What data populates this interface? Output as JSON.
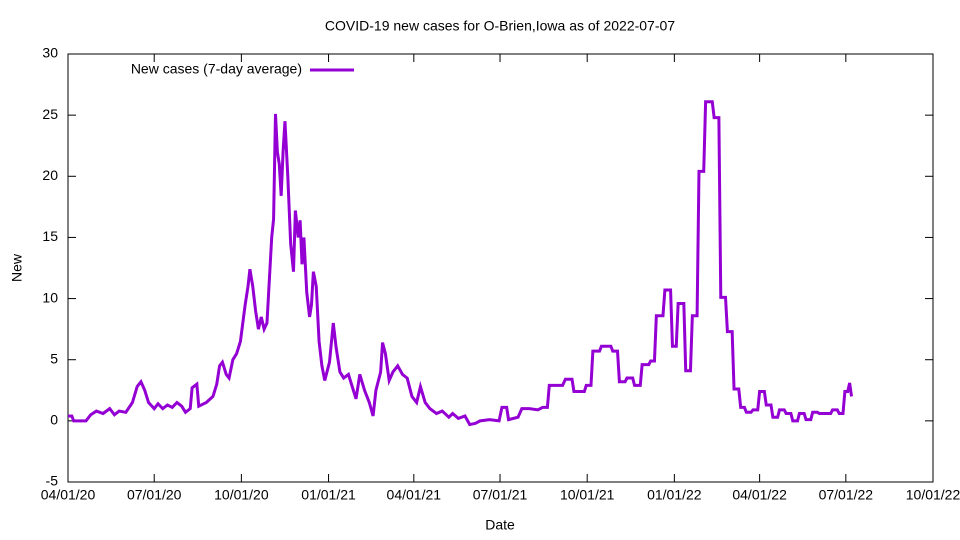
{
  "chart_data": {
    "type": "line",
    "title": "COVID-19 new cases for O-Brien,Iowa as of 2022-07-07",
    "xlabel": "Date",
    "ylabel": "New",
    "legend": "top-left",
    "xlim": [
      "2020-04-01",
      "2022-10-01"
    ],
    "xticks": [
      {
        "value": "2020-04-01",
        "label": "04/01/20"
      },
      {
        "value": "2020-07-01",
        "label": "07/01/20"
      },
      {
        "value": "2020-10-01",
        "label": "10/01/20"
      },
      {
        "value": "2021-01-01",
        "label": "01/01/21"
      },
      {
        "value": "2021-04-01",
        "label": "04/01/21"
      },
      {
        "value": "2021-07-01",
        "label": "07/01/21"
      },
      {
        "value": "2021-10-01",
        "label": "10/01/21"
      },
      {
        "value": "2022-01-01",
        "label": "01/01/22"
      },
      {
        "value": "2022-04-01",
        "label": "04/01/22"
      },
      {
        "value": "2022-07-01",
        "label": "07/01/22"
      },
      {
        "value": "2022-10-01",
        "label": "10/01/22"
      }
    ],
    "ylim": [
      -5,
      30
    ],
    "yticks": [
      -5,
      0,
      5,
      10,
      15,
      20,
      25,
      30
    ],
    "x": [
      "2020-04-01",
      "2020-04-05",
      "2020-04-07",
      "2020-04-20",
      "2020-04-25",
      "2020-05-01",
      "2020-05-08",
      "2020-05-15",
      "2020-05-20",
      "2020-05-25",
      "2020-06-01",
      "2020-06-08",
      "2020-06-13",
      "2020-06-17",
      "2020-06-21",
      "2020-06-25",
      "2020-07-01",
      "2020-07-05",
      "2020-07-10",
      "2020-07-15",
      "2020-07-20",
      "2020-07-25",
      "2020-07-30",
      "2020-08-03",
      "2020-08-08",
      "2020-08-10",
      "2020-08-15",
      "2020-08-17",
      "2020-08-25",
      "2020-09-01",
      "2020-09-05",
      "2020-09-08",
      "2020-09-11",
      "2020-09-15",
      "2020-09-18",
      "2020-09-22",
      "2020-09-26",
      "2020-09-30",
      "2020-10-05",
      "2020-10-08",
      "2020-10-10",
      "2020-10-13",
      "2020-10-16",
      "2020-10-19",
      "2020-10-22",
      "2020-10-25",
      "2020-10-28",
      "2020-10-30",
      "2020-11-02",
      "2020-11-04",
      "2020-11-06",
      "2020-11-08",
      "2020-11-10",
      "2020-11-12",
      "2020-11-14",
      "2020-11-16",
      "2020-11-19",
      "2020-11-22",
      "2020-11-25",
      "2020-11-27",
      "2020-11-30",
      "2020-12-02",
      "2020-12-04",
      "2020-12-06",
      "2020-12-09",
      "2020-12-12",
      "2020-12-14",
      "2020-12-16",
      "2020-12-19",
      "2020-12-22",
      "2020-12-25",
      "2020-12-28",
      "2021-01-02",
      "2021-01-06",
      "2021-01-09",
      "2021-01-13",
      "2021-01-17",
      "2021-01-22",
      "2021-01-26",
      "2021-01-30",
      "2021-02-03",
      "2021-02-08",
      "2021-02-13",
      "2021-02-17",
      "2021-02-20",
      "2021-02-25",
      "2021-02-27",
      "2021-03-02",
      "2021-03-06",
      "2021-03-10",
      "2021-03-15",
      "2021-03-20",
      "2021-03-25",
      "2021-03-30",
      "2021-04-04",
      "2021-04-08",
      "2021-04-13",
      "2021-04-18",
      "2021-04-25",
      "2021-05-01",
      "2021-05-08",
      "2021-05-12",
      "2021-05-18",
      "2021-05-25",
      "2021-05-30",
      "2021-06-05",
      "2021-06-10",
      "2021-06-20",
      "2021-06-30",
      "2021-07-03",
      "2021-07-08",
      "2021-07-10",
      "2021-07-20",
      "2021-07-24",
      "2021-08-01",
      "2021-08-10",
      "2021-08-15",
      "2021-08-20",
      "2021-08-22",
      "2021-09-05",
      "2021-09-08",
      "2021-09-15",
      "2021-09-17",
      "2021-09-28",
      "2021-09-30",
      "2021-10-05",
      "2021-10-07",
      "2021-10-14",
      "2021-10-16",
      "2021-10-26",
      "2021-10-28",
      "2021-11-02",
      "2021-11-04",
      "2021-11-10",
      "2021-11-12",
      "2021-11-18",
      "2021-11-20",
      "2021-11-26",
      "2021-11-28",
      "2021-12-05",
      "2021-12-07",
      "2021-12-11",
      "2021-12-13",
      "2021-12-20",
      "2021-12-22",
      "2021-12-28",
      "2021-12-30",
      "2022-01-03",
      "2022-01-05",
      "2022-01-11",
      "2022-01-13",
      "2022-01-18",
      "2022-01-20",
      "2022-01-25",
      "2022-01-27",
      "2022-02-01",
      "2022-02-03",
      "2022-02-10",
      "2022-02-12",
      "2022-02-17",
      "2022-02-19",
      "2022-02-24",
      "2022-02-26",
      "2022-03-03",
      "2022-03-05",
      "2022-03-10",
      "2022-03-12",
      "2022-03-16",
      "2022-03-18",
      "2022-03-23",
      "2022-03-25",
      "2022-03-30",
      "2022-04-01",
      "2022-04-06",
      "2022-04-08",
      "2022-04-13",
      "2022-04-15",
      "2022-04-20",
      "2022-04-22",
      "2022-04-27",
      "2022-04-29",
      "2022-05-04",
      "2022-05-06",
      "2022-05-11",
      "2022-05-13",
      "2022-05-18",
      "2022-05-20",
      "2022-05-25",
      "2022-05-27",
      "2022-06-01",
      "2022-06-03",
      "2022-06-15",
      "2022-06-17",
      "2022-06-22",
      "2022-06-24",
      "2022-06-28",
      "2022-06-30",
      "2022-07-03",
      "2022-07-05",
      "2022-07-07"
    ],
    "series": [
      {
        "name": "New cases (7-day average)",
        "color": "#9400d3",
        "values": [
          0.4,
          0.4,
          0,
          0,
          0.5,
          0.8,
          0.6,
          1.0,
          0.5,
          0.8,
          0.7,
          1.5,
          2.8,
          3.2,
          2.5,
          1.5,
          1.0,
          1.4,
          1.0,
          1.3,
          1.1,
          1.5,
          1.2,
          0.7,
          1.0,
          2.7,
          3.0,
          1.2,
          1.5,
          2.0,
          3.0,
          4.5,
          4.8,
          3.8,
          3.5,
          5.0,
          5.5,
          6.5,
          9.5,
          11,
          12.4,
          11.0,
          9.0,
          7.5,
          8.5,
          7.5,
          8.0,
          10.8,
          15,
          16.5,
          25.1,
          22,
          21,
          18.4,
          22,
          24.5,
          20,
          14.5,
          12.2,
          17.2,
          15.0,
          16.4,
          12.8,
          15.0,
          10.5,
          8.5,
          9.5,
          12.2,
          11.0,
          6.5,
          4.5,
          3.3,
          4.8,
          8.0,
          6.0,
          4.0,
          3.5,
          3.8,
          2.8,
          1.8,
          3.8,
          2.5,
          1.5,
          0.4,
          2.5,
          4.0,
          6.4,
          5.5,
          3.3,
          4.0,
          4.5,
          3.8,
          3.5,
          2.0,
          1.5,
          2.8,
          1.5,
          1.0,
          0.6,
          0.8,
          0.3,
          0.6,
          0.2,
          0.4,
          -0.3,
          -0.2,
          0,
          0.1,
          0.0,
          1.1,
          1.1,
          0.1,
          0.3,
          1.0,
          1.0,
          0.9,
          1.1,
          1.1,
          2.9,
          2.9,
          3.4,
          3.4,
          2.4,
          2.4,
          2.9,
          2.9,
          5.7,
          5.7,
          6.1,
          6.1,
          5.7,
          5.7,
          3.2,
          3.2,
          3.5,
          3.5,
          2.9,
          2.9,
          4.6,
          4.6,
          4.9,
          4.9,
          8.6,
          8.6,
          10.7,
          10.7,
          6.1,
          6.1,
          9.6,
          9.6,
          4.1,
          4.1,
          8.6,
          8.6,
          20.4,
          20.4,
          26.1,
          26.1,
          24.8,
          24.8,
          10.1,
          10.1,
          7.3,
          7.3,
          2.6,
          2.6,
          1.1,
          1.1,
          0.7,
          0.7,
          0.9,
          0.9,
          2.4,
          2.4,
          1.3,
          1.3,
          0.3,
          0.3,
          0.9,
          0.9,
          0.6,
          0.6,
          0,
          0,
          0.6,
          0.6,
          0.1,
          0.1,
          0.7,
          0.7,
          0.6,
          0.6,
          0.9,
          0.9,
          0.6,
          0.6,
          2.4,
          2.4,
          3.1,
          2.0
        ]
      }
    ]
  }
}
